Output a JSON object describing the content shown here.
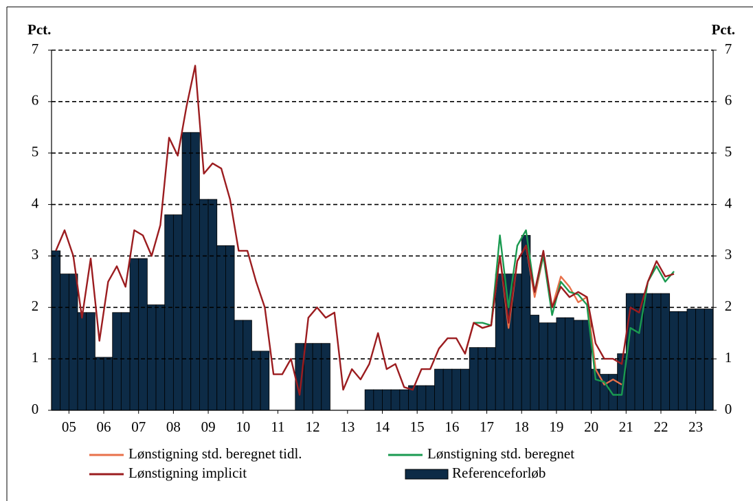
{
  "chart_data": {
    "type": "bar",
    "y_label": "Pct.",
    "y2_label": "Pct.",
    "x": [
      2005.125,
      2005.375,
      2005.625,
      2005.875,
      2006.125,
      2006.375,
      2006.625,
      2006.875,
      2007.125,
      2007.375,
      2007.625,
      2007.875,
      2008.125,
      2008.375,
      2008.625,
      2008.875,
      2009.125,
      2009.375,
      2009.625,
      2009.875,
      2010.125,
      2010.375,
      2010.625,
      2010.875,
      2011.125,
      2011.375,
      2011.625,
      2011.875,
      2012.125,
      2012.375,
      2012.625,
      2012.875,
      2013.125,
      2013.375,
      2013.625,
      2013.875,
      2014.125,
      2014.375,
      2014.625,
      2014.875,
      2015.125,
      2015.375,
      2015.625,
      2015.875,
      2016.125,
      2016.375,
      2016.625,
      2016.875,
      2017.125,
      2017.375,
      2017.625,
      2017.875,
      2018.125,
      2018.375,
      2018.625,
      2018.875,
      2019.125,
      2019.375,
      2019.625,
      2019.875,
      2020.125,
      2020.375,
      2020.625,
      2020.875,
      2021.125,
      2021.375,
      2021.625,
      2021.875,
      2022.125,
      2022.375,
      2022.625,
      2022.875,
      2023.125,
      2023.375,
      2023.625,
      2023.875
    ],
    "xlim": [
      2005,
      2024
    ],
    "xticks": [
      {
        "value": 2005.5,
        "label": "05"
      },
      {
        "value": 2006.5,
        "label": "06"
      },
      {
        "value": 2007.5,
        "label": "07"
      },
      {
        "value": 2008.5,
        "label": "08"
      },
      {
        "value": 2009.5,
        "label": "09"
      },
      {
        "value": 2010.5,
        "label": "10"
      },
      {
        "value": 2011.5,
        "label": "11"
      },
      {
        "value": 2012.5,
        "label": "12"
      },
      {
        "value": 2013.5,
        "label": "13"
      },
      {
        "value": 2014.5,
        "label": "14"
      },
      {
        "value": 2015.5,
        "label": "15"
      },
      {
        "value": 2016.5,
        "label": "16"
      },
      {
        "value": 2017.5,
        "label": "17"
      },
      {
        "value": 2018.5,
        "label": "18"
      },
      {
        "value": 2019.5,
        "label": "19"
      },
      {
        "value": 2020.5,
        "label": "20"
      },
      {
        "value": 2021.5,
        "label": "21"
      },
      {
        "value": 2022.5,
        "label": "22"
      },
      {
        "value": 2023.5,
        "label": "23"
      }
    ],
    "ylim": [
      0,
      7
    ],
    "yticks": [
      0,
      1,
      2,
      3,
      4,
      5,
      6,
      7
    ],
    "y2lim": [
      0,
      7
    ],
    "y2ticks": [
      0,
      1,
      2,
      3,
      4,
      5,
      6,
      7
    ],
    "grid": true,
    "series": [
      {
        "name": "Referenceforløb",
        "type": "bar",
        "color": "#0d2b46",
        "values": [
          3.1,
          2.65,
          2.65,
          1.9,
          1.9,
          1.03,
          1.03,
          1.9,
          1.9,
          2.95,
          2.95,
          2.05,
          2.05,
          3.8,
          3.8,
          5.4,
          5.4,
          4.1,
          4.1,
          3.2,
          3.2,
          1.75,
          1.75,
          1.15,
          1.15,
          0,
          0,
          0,
          1.3,
          1.3,
          1.3,
          1.3,
          0,
          0,
          0,
          0,
          0.4,
          0.4,
          0.4,
          0.4,
          0.4,
          0.48,
          0.48,
          0.48,
          0.8,
          0.8,
          0.8,
          0.8,
          1.22,
          1.22,
          1.22,
          2.65,
          2.65,
          2.65,
          3.4,
          1.85,
          1.7,
          1.7,
          1.8,
          1.8,
          1.75,
          1.75,
          0.8,
          0.7,
          0.7,
          1.1,
          2.27,
          2.27,
          2.27,
          2.27,
          2.27,
          1.92,
          1.92,
          1.97,
          1.97,
          1.97
        ]
      },
      {
        "name": "Lønstigning std. beregnet tidl.",
        "type": "line",
        "color": "#e8704a",
        "values": [
          null,
          null,
          null,
          null,
          null,
          null,
          null,
          null,
          null,
          null,
          null,
          null,
          null,
          null,
          null,
          null,
          null,
          null,
          null,
          null,
          null,
          null,
          null,
          null,
          null,
          null,
          null,
          null,
          null,
          null,
          null,
          null,
          null,
          null,
          null,
          null,
          null,
          null,
          null,
          null,
          null,
          null,
          null,
          null,
          null,
          null,
          null,
          1.1,
          1.7,
          1.6,
          1.65,
          3.0,
          1.6,
          2.9,
          3.2,
          2.2,
          3.0,
          2.0,
          2.6,
          2.4,
          2.1,
          2.2,
          0.8,
          0.5,
          0.6,
          0.5,
          null,
          null,
          null,
          null,
          null,
          null,
          null,
          null,
          null,
          null
        ]
      },
      {
        "name": "Lønstigning std. beregnet",
        "type": "line",
        "color": "#1a9a50",
        "values": [
          null,
          null,
          null,
          null,
          null,
          null,
          null,
          null,
          null,
          null,
          null,
          null,
          null,
          null,
          null,
          null,
          null,
          null,
          null,
          null,
          null,
          null,
          null,
          null,
          null,
          null,
          null,
          null,
          null,
          null,
          null,
          null,
          null,
          null,
          null,
          null,
          null,
          null,
          null,
          null,
          null,
          null,
          null,
          null,
          null,
          null,
          null,
          null,
          1.7,
          1.7,
          1.65,
          3.4,
          2.0,
          3.2,
          3.5,
          2.3,
          3.0,
          1.85,
          2.5,
          2.3,
          2.25,
          2.05,
          0.6,
          0.55,
          0.3,
          0.3,
          1.6,
          1.5,
          2.5,
          2.8,
          2.5,
          2.7,
          null,
          null,
          null,
          null
        ]
      },
      {
        "name": "Lønstigning implicit",
        "type": "line",
        "color": "#9b1c1f",
        "values": [
          3.1,
          3.5,
          3.0,
          1.8,
          2.95,
          1.35,
          2.5,
          2.8,
          2.4,
          3.5,
          3.4,
          3.0,
          3.6,
          5.3,
          4.95,
          5.9,
          6.7,
          4.6,
          4.8,
          4.7,
          4.1,
          3.1,
          3.1,
          2.5,
          2.0,
          0.7,
          0.7,
          1.0,
          0.3,
          1.8,
          2.0,
          1.8,
          1.9,
          0.4,
          0.8,
          0.6,
          0.9,
          1.5,
          0.8,
          0.9,
          0.45,
          0.4,
          0.8,
          0.8,
          1.2,
          1.4,
          1.4,
          1.1,
          1.7,
          1.6,
          1.65,
          3.0,
          1.7,
          2.9,
          3.2,
          2.3,
          3.1,
          2.0,
          2.4,
          2.2,
          2.3,
          2.2,
          1.3,
          1.0,
          1.0,
          0.9,
          2.0,
          1.9,
          2.5,
          2.9,
          2.6,
          2.65,
          null,
          null,
          null,
          null
        ]
      }
    ]
  }
}
